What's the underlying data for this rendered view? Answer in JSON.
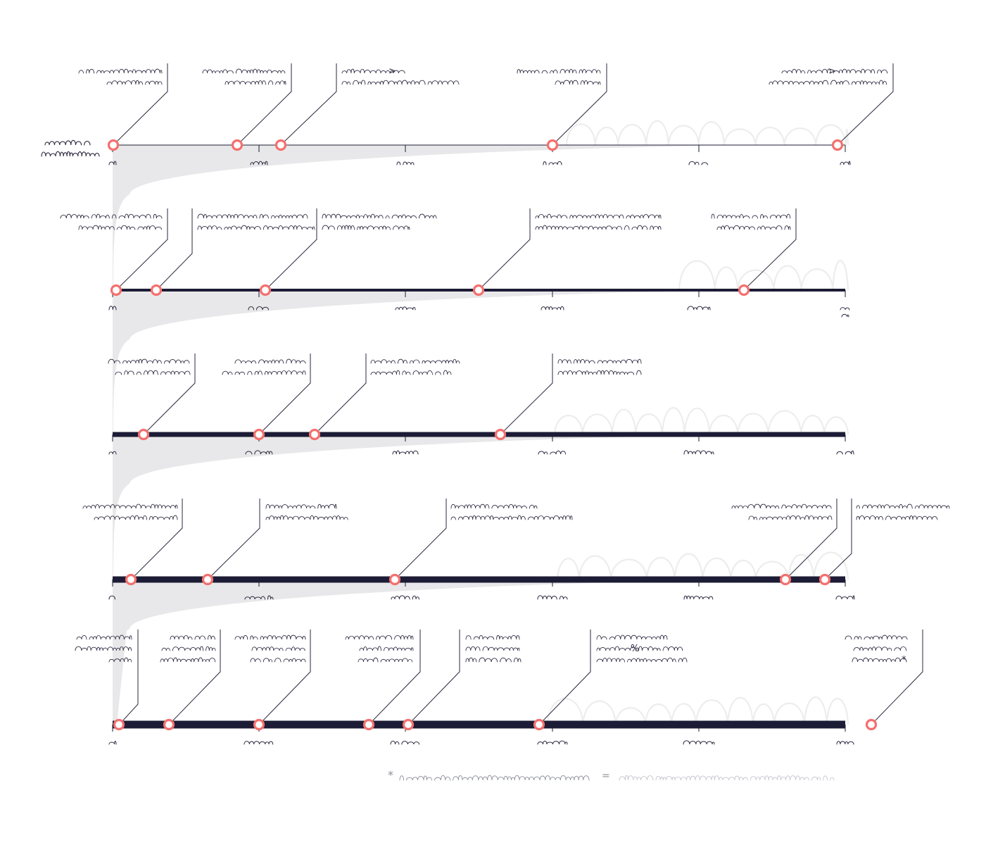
{
  "footnote": {
    "asterisk": "*",
    "equals": "=",
    "scribbles": [
      {
        "from": 568,
        "to": 837,
        "color": "#8c8f99"
      },
      {
        "from": 880,
        "to": 1187,
        "color": "#c4c6cc"
      }
    ]
  },
  "rows": [
    {
      "label": "row-1",
      "y": 206,
      "thickness": 1,
      "marker_r": 6.5,
      "funnel": {
        "start": 160,
        "top": 222,
        "bottom": 284,
        "tip": 205
      },
      "wave": {
        "x1": 805,
        "x2": 1205,
        "base": 206,
        "height": 48,
        "color": "#ededed"
      },
      "side_label": {
        "x": 64,
        "lines": [
          {
            "w": 64,
            "dy": 0,
            "y": 206,
            "strong": true
          },
          {
            "w": 82,
            "dy": 16,
            "y": 206,
            "strong": true
          }
        ]
      },
      "ticks": [
        {
          "x": 160,
          "w": 10
        },
        {
          "x": 368,
          "w": 24
        },
        {
          "x": 576,
          "w": 24
        },
        {
          "x": 785,
          "w": 26
        },
        {
          "x": 993,
          "w": 28
        },
        {
          "x": 1201,
          "w": 14
        }
      ],
      "events": [
        {
          "x": 161,
          "elbow": 238,
          "topY": 90,
          "kneeY": 130,
          "text_right": 230,
          "lines": [
            118,
            78
          ]
        },
        {
          "x": 337,
          "elbow": 414,
          "topY": 90,
          "kneeY": 130,
          "text_right": 406,
          "lines": [
            118,
            86
          ]
        },
        {
          "x": 399,
          "elbow": 478,
          "topY": 90,
          "kneeY": 130,
          "text_left": 486,
          "lines": [
            90,
            166
          ],
          "snippet": ">"
        },
        {
          "x": 785,
          "elbow": 862,
          "topY": 90,
          "kneeY": 130,
          "text_right": 853,
          "lines": [
            118,
            64
          ]
        },
        {
          "x": 1190,
          "elbow": 1269,
          "topY": 90,
          "kneeY": 130,
          "text_right": 1261,
          "lines": [
            150,
            168
          ],
          "snippet": ">"
        }
      ]
    },
    {
      "label": "row-2",
      "y": 412,
      "thickness": 4,
      "marker_r": 6.5,
      "funnel": {
        "start": 160,
        "top": 428,
        "bottom": 490,
        "tip": 411
      },
      "wave": {
        "x1": 965,
        "x2": 1205,
        "base": 412,
        "height": 56,
        "color": "#ededed"
      },
      "ticks": [
        {
          "x": 160,
          "w": 10
        },
        {
          "x": 368,
          "w": 30
        },
        {
          "x": 576,
          "w": 28
        },
        {
          "x": 785,
          "w": 32
        },
        {
          "x": 993,
          "w": 32
        },
        {
          "x": 1201,
          "w": 14
        }
      ],
      "events": [
        {
          "x": 165,
          "elbow": 238,
          "topY": 296,
          "kneeY": 340,
          "text_right": 230,
          "lines": [
            144,
            118
          ]
        },
        {
          "x": 222,
          "elbow": 273,
          "topY": 296,
          "kneeY": 360,
          "text_left": 281,
          "lines": [
            156,
            166
          ]
        },
        {
          "x": 377,
          "elbow": 450,
          "topY": 296,
          "kneeY": 340,
          "text_left": 458,
          "lines": [
            162,
            124
          ]
        },
        {
          "x": 680,
          "elbow": 753,
          "topY": 296,
          "kneeY": 340,
          "text_left": 761,
          "lines": [
            178,
            178
          ]
        },
        {
          "x": 1057,
          "elbow": 1131,
          "topY": 296,
          "kneeY": 340,
          "text_right": 1123,
          "lines": [
            112,
            104
          ]
        }
      ]
    },
    {
      "label": "row-3",
      "y": 617,
      "thickness": 7,
      "marker_r": 6.5,
      "funnel": {
        "start": 160,
        "top": 633,
        "bottom": 695,
        "tip": 616
      },
      "wave": {
        "x1": 788,
        "x2": 1205,
        "base": 617,
        "height": 52,
        "color": "#ededed"
      },
      "ticks": [
        {
          "x": 160,
          "w": 10
        },
        {
          "x": 368,
          "w": 38
        },
        {
          "x": 576,
          "w": 36
        },
        {
          "x": 785,
          "w": 40
        },
        {
          "x": 993,
          "w": 42
        },
        {
          "x": 1201,
          "w": 24
        }
      ],
      "events": [
        {
          "x": 204,
          "elbow": 277,
          "topY": 502,
          "kneeY": 544,
          "text_right": 270,
          "lines": [
            116,
            106
          ]
        },
        {
          "x": 368,
          "elbow": 441,
          "topY": 502,
          "kneeY": 544,
          "text_right": 434,
          "lines": [
            100,
            118
          ]
        },
        {
          "x": 447,
          "elbow": 520,
          "topY": 502,
          "kneeY": 544,
          "text_left": 527,
          "lines": [
            126,
            114
          ]
        },
        {
          "x": 711,
          "elbow": 785,
          "topY": 502,
          "kneeY": 544,
          "text_left": 793,
          "lines": [
            118,
            118
          ]
        }
      ]
    },
    {
      "label": "row-4",
      "y": 823,
      "thickness": 9,
      "marker_r": 6.5,
      "funnel": {
        "start": 160,
        "top": 839,
        "bottom": 901,
        "tip": 822
      },
      "wave": {
        "x1": 792,
        "x2": 1205,
        "base": 823,
        "height": 52,
        "color": "#ededed"
      },
      "ticks": [
        {
          "x": 160,
          "w": 10
        },
        {
          "x": 368,
          "w": 40
        },
        {
          "x": 576,
          "w": 40
        },
        {
          "x": 785,
          "w": 42
        },
        {
          "x": 993,
          "w": 42
        },
        {
          "x": 1201,
          "w": 26
        }
      ],
      "events": [
        {
          "x": 186,
          "elbow": 259,
          "topY": 708,
          "kneeY": 750,
          "text_right": 252,
          "lines": [
            134,
            118
          ]
        },
        {
          "x": 295,
          "elbow": 369,
          "topY": 708,
          "kneeY": 750,
          "text_left": 378,
          "lines": [
            100,
            118
          ]
        },
        {
          "x": 561,
          "elbow": 634,
          "topY": 708,
          "kneeY": 750,
          "text_left": 641,
          "lines": [
            122,
            172
          ]
        },
        {
          "x": 1116,
          "elbow": 1189,
          "topY": 708,
          "kneeY": 750,
          "text_right": 1182,
          "lines": [
            142,
            118
          ]
        },
        {
          "x": 1172,
          "elbow": 1210,
          "topY": 708,
          "kneeY": 786,
          "text_left": 1217,
          "lines": [
            132,
            116
          ]
        }
      ]
    },
    {
      "label": "row-5",
      "y": 1029,
      "thickness": 11,
      "marker_r": 6.5,
      "funnel": null,
      "wave": {
        "x1": 778,
        "x2": 1205,
        "base": 1029,
        "height": 52,
        "color": "#ededed"
      },
      "ticks": [
        {
          "x": 160,
          "w": 10
        },
        {
          "x": 368,
          "w": 42
        },
        {
          "x": 576,
          "w": 42
        },
        {
          "x": 785,
          "w": 42
        },
        {
          "x": 993,
          "w": 44
        },
        {
          "x": 1201,
          "w": 24
        }
      ],
      "events": [
        {
          "x": 169,
          "elbow": 196,
          "topY": 894,
          "kneeY": 1000,
          "text_right": 187,
          "lines": [
            78,
            80,
            32
          ]
        },
        {
          "x": 240,
          "elbow": 313,
          "topY": 894,
          "kneeY": 954,
          "text_right": 306,
          "lines": [
            64,
            76,
            78
          ]
        },
        {
          "x": 368,
          "elbow": 441,
          "topY": 894,
          "kneeY": 954,
          "text_right": 434,
          "lines": [
            100,
            76,
            78
          ]
        },
        {
          "x": 524,
          "elbow": 597,
          "topY": 894,
          "kneeY": 954,
          "text_right": 587,
          "lines": [
            96,
            76,
            78
          ]
        },
        {
          "x": 580,
          "elbow": 653,
          "topY": 894,
          "kneeY": 954,
          "text_left": 662,
          "lines": [
            76,
            76,
            78
          ]
        },
        {
          "x": 766,
          "elbow": 839,
          "topY": 894,
          "kneeY": 954,
          "text_left": 848,
          "lines": [
            100,
            122,
            128
          ],
          "snippet": "%"
        },
        {
          "x": 1238,
          "elbow": 1311,
          "topY": 894,
          "kneeY": 954,
          "text_right": 1289,
          "lines": [
            88,
            76,
            78
          ],
          "snippet": "*"
        }
      ]
    }
  ],
  "colors": {
    "axis": "#1c1c36",
    "marker": "#f4706e",
    "funnel": "#e8e8ea",
    "leader": "#2a2a40",
    "text": "#2a2a40"
  }
}
